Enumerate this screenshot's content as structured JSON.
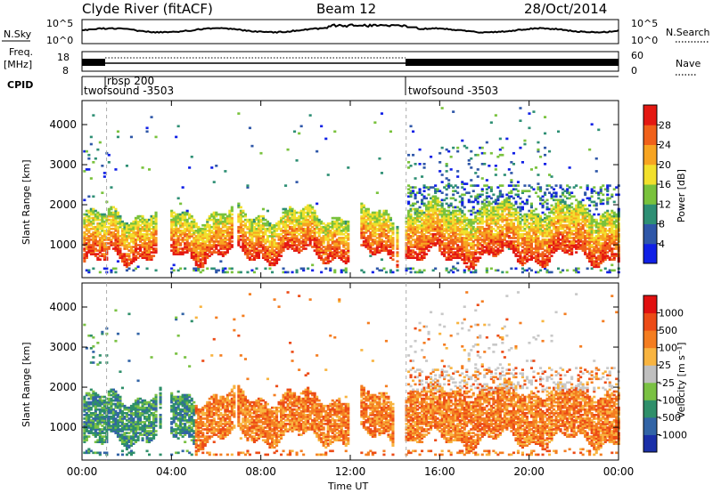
{
  "header": {
    "station": "Clyde River (fitACF)",
    "beam": "Beam 12",
    "date": "28/Oct/2014"
  },
  "top_panels": {
    "nsky_label": "N.Sky",
    "nsky_ticks": [
      "10^5",
      "10^0"
    ],
    "nsearch_label": "N.Search",
    "nsearch_ticks": [
      "10^5",
      "10^0"
    ],
    "freq_label": "Freq.",
    "freq_unit": "[MHz]",
    "freq_ticks": [
      "18",
      "8"
    ],
    "nave_label": "Nave",
    "nave_ticks": [
      "60",
      "0"
    ],
    "cpid_label": "CPID",
    "cpid_entries": [
      {
        "name": "twofsound -3503",
        "start_hour": 0
      },
      {
        "name": "rbsp 200",
        "start_hour": 1.1
      },
      {
        "name": "twofsound -3503",
        "start_hour": 14.5
      }
    ]
  },
  "chart_data": [
    {
      "type": "heatmap",
      "name": "power",
      "ylabel": "Slant Range [km]",
      "ylim": [
        180,
        4600
      ],
      "yticks": [
        "1000",
        "2000",
        "3000",
        "4000"
      ],
      "ytick_values": [
        1000,
        2000,
        3000,
        4000
      ],
      "xlim": [
        0,
        24
      ],
      "colorbar_label": "Power [dB]",
      "colorbar_ticks": [
        "4",
        "8",
        "12",
        "16",
        "20",
        "24",
        "28"
      ],
      "colorbar_values": [
        4,
        8,
        12,
        16,
        20,
        24,
        28
      ],
      "colorbar_colors": [
        "#1020e6",
        "#2f57a8",
        "#2e8f74",
        "#79c23c",
        "#f2e02c",
        "#f7a421",
        "#f0611a",
        "#e41812"
      ],
      "clim": [
        0,
        32
      ]
    },
    {
      "type": "heatmap",
      "name": "velocity",
      "ylabel": "Slant Range [km]",
      "ylim": [
        180,
        4600
      ],
      "yticks": [
        "1000",
        "2000",
        "3000",
        "4000"
      ],
      "ytick_values": [
        1000,
        2000,
        3000,
        4000
      ],
      "xlim": [
        0,
        24
      ],
      "xlabel": "Time UT",
      "xticks": [
        "00:00",
        "04:00",
        "08:00",
        "12:00",
        "16:00",
        "20:00",
        "00:00"
      ],
      "xtick_values": [
        0,
        4,
        8,
        12,
        16,
        20,
        24
      ],
      "colorbar_label": "Velocity [m s⁻¹]",
      "colorbar_ticks": [
        "1000",
        "500",
        "100",
        "25",
        "-25",
        "-100",
        "-500",
        "-1000"
      ],
      "colorbar_colors": [
        "#1a2fa8",
        "#3264a6",
        "#2f8f6a",
        "#7ac143",
        "#bfbfbf",
        "#f8b440",
        "#f47d20",
        "#ec4b16",
        "#e01010"
      ],
      "ground_scatter_color": "#c8c8c8"
    }
  ],
  "colors": {
    "background": "#ffffff",
    "axis": "#000000"
  }
}
